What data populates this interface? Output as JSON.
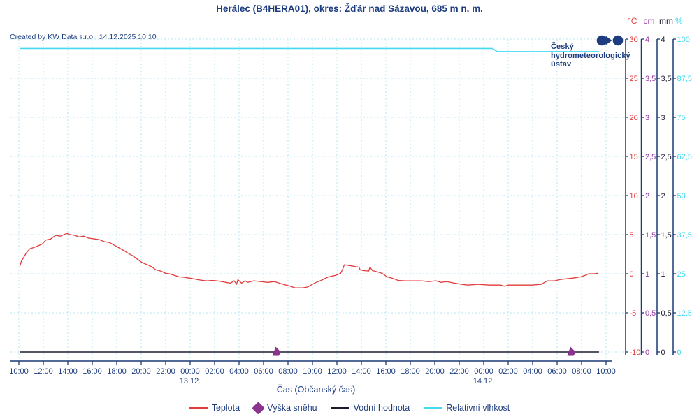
{
  "header": {
    "title": "Herálec (B4HERA01), okres: Žďár nad Sázavou, 685 m n. m.",
    "created_by": "Created by KW Data s.r.o., 14.12.2025 10:10"
  },
  "logo": {
    "line1": "Český",
    "line2": "hydrometeorologický",
    "line3": "ústav"
  },
  "colors": {
    "navy_text": "#1e3d80",
    "axis_line": "#1c3a75",
    "grid": "#b5e7f1",
    "temperature": "#e23b3b",
    "snow": "#8f3391",
    "water": "#1c1c30",
    "humidity": "#45d9f2"
  },
  "axes": {
    "right_columns": [
      {
        "unit": "°C",
        "color": "#e23b3b",
        "tick_labels": [
          "30",
          "25",
          "20",
          "15",
          "10",
          "5",
          "0",
          "-5",
          "-10"
        ]
      },
      {
        "unit": "cm",
        "color": "#9a3aa8",
        "tick_labels": [
          "4",
          "3,5",
          "3",
          "2,5",
          "2",
          "1,5",
          "1",
          "0,5",
          "0"
        ]
      },
      {
        "unit": "mm",
        "color": "#1c1c30",
        "tick_labels": [
          "4",
          "3,5",
          "3",
          "2,5",
          "2",
          "1,5",
          "1",
          "0,5",
          "0"
        ]
      },
      {
        "unit": "%",
        "color": "#3fd9f0",
        "tick_labels": [
          "100",
          "87,5",
          "75",
          "62,5",
          "50",
          "37,5",
          "25",
          "12,5",
          "0"
        ]
      }
    ]
  },
  "x_axis": {
    "title": "Čas (Občanský čas)",
    "tick_labels": [
      "10:00",
      "12:00",
      "14:00",
      "16:00",
      "18:00",
      "20:00",
      "22:00",
      "00:00",
      "02:00",
      "04:00",
      "06:00",
      "08:00",
      "10:00",
      "12:00",
      "14:00",
      "16:00",
      "18:00",
      "20:00",
      "22:00",
      "00:00",
      "02:00",
      "04:00",
      "06:00",
      "08:00",
      "10:00"
    ],
    "date_labels": [
      {
        "text": "13.12.",
        "hour": 14
      },
      {
        "text": "14.12.",
        "hour": 38
      }
    ]
  },
  "legend": {
    "items": [
      {
        "label": "Teplota",
        "color": "#e23b3b",
        "marker": "line"
      },
      {
        "label": "Výška sněhu",
        "color": "#8f3391",
        "marker": "diamond"
      },
      {
        "label": "Vodní hodnota",
        "color": "#1c1c30",
        "marker": "line"
      },
      {
        "label": "Relativní vlhkost",
        "color": "#45d9f2",
        "marker": "line"
      }
    ]
  },
  "chart_data": {
    "type": "line",
    "title": "Herálec (B4HERA01), okres: Žďár nad Sázavou, 685 m n. m.",
    "xlabel": "Čas (Občanský čas)",
    "x_unit": "hours since 12.12. 10:00 (labels every 2 h, 48 h span)",
    "x_range_hours": [
      0,
      48
    ],
    "grid": true,
    "legend_position": "bottom",
    "series": [
      {
        "name": "Teplota",
        "unit": "°C",
        "color": "#e23b3b",
        "axis_range": [
          -10,
          30
        ],
        "style": "line",
        "points": [
          [
            0.1,
            1.05
          ],
          [
            0.2,
            1.6
          ],
          [
            0.4,
            2.1
          ],
          [
            0.6,
            2.65
          ],
          [
            0.9,
            3.2
          ],
          [
            1.4,
            3.45
          ],
          [
            1.9,
            3.8
          ],
          [
            2.2,
            4.3
          ],
          [
            2.6,
            4.45
          ],
          [
            3.0,
            4.9
          ],
          [
            3.4,
            4.8
          ],
          [
            3.9,
            5.15
          ],
          [
            4.2,
            5.0
          ],
          [
            4.6,
            4.9
          ],
          [
            4.9,
            4.7
          ],
          [
            5.3,
            4.8
          ],
          [
            5.7,
            4.55
          ],
          [
            6.2,
            4.45
          ],
          [
            6.6,
            4.35
          ],
          [
            7.0,
            4.1
          ],
          [
            7.4,
            4.0
          ],
          [
            7.8,
            3.65
          ],
          [
            8.2,
            3.3
          ],
          [
            8.6,
            2.95
          ],
          [
            8.9,
            2.65
          ],
          [
            9.3,
            2.3
          ],
          [
            9.7,
            1.85
          ],
          [
            10.1,
            1.4
          ],
          [
            10.5,
            1.15
          ],
          [
            10.9,
            0.85
          ],
          [
            11.2,
            0.5
          ],
          [
            11.6,
            0.35
          ],
          [
            12.0,
            0.05
          ],
          [
            12.3,
            0.0
          ],
          [
            12.7,
            -0.2
          ],
          [
            13.1,
            -0.4
          ],
          [
            13.5,
            -0.45
          ],
          [
            13.9,
            -0.55
          ],
          [
            14.3,
            -0.65
          ],
          [
            14.6,
            -0.75
          ],
          [
            15.0,
            -0.85
          ],
          [
            15.4,
            -0.9
          ],
          [
            15.8,
            -0.85
          ],
          [
            16.2,
            -0.9
          ],
          [
            16.6,
            -1.0
          ],
          [
            16.9,
            -1.1
          ],
          [
            17.3,
            -1.2
          ],
          [
            17.6,
            -0.9
          ],
          [
            17.8,
            -1.35
          ],
          [
            17.9,
            -0.75
          ],
          [
            18.2,
            -1.2
          ],
          [
            18.5,
            -0.9
          ],
          [
            18.7,
            -1.1
          ],
          [
            19.2,
            -0.9
          ],
          [
            19.8,
            -1.0
          ],
          [
            20.3,
            -1.1
          ],
          [
            20.9,
            -1.0
          ],
          [
            21.5,
            -1.3
          ],
          [
            22.1,
            -1.55
          ],
          [
            22.6,
            -1.8
          ],
          [
            23.2,
            -1.8
          ],
          [
            23.6,
            -1.7
          ],
          [
            24.0,
            -1.35
          ],
          [
            24.3,
            -1.1
          ],
          [
            24.7,
            -0.85
          ],
          [
            25.3,
            -0.4
          ],
          [
            25.9,
            -0.2
          ],
          [
            26.3,
            0.05
          ],
          [
            26.5,
            0.7
          ],
          [
            26.6,
            1.15
          ],
          [
            27.0,
            1.05
          ],
          [
            27.4,
            0.95
          ],
          [
            27.8,
            0.85
          ],
          [
            27.9,
            0.5
          ],
          [
            28.2,
            0.4
          ],
          [
            28.6,
            0.35
          ],
          [
            28.7,
            0.85
          ],
          [
            28.9,
            0.4
          ],
          [
            29.3,
            0.25
          ],
          [
            29.7,
            0.05
          ],
          [
            30.1,
            -0.4
          ],
          [
            30.5,
            -0.55
          ],
          [
            31.0,
            -0.85
          ],
          [
            31.6,
            -0.9
          ],
          [
            32.2,
            -0.9
          ],
          [
            32.9,
            -0.9
          ],
          [
            33.5,
            -1.0
          ],
          [
            34.1,
            -0.9
          ],
          [
            34.5,
            -1.1
          ],
          [
            35.0,
            -1.0
          ],
          [
            35.6,
            -1.2
          ],
          [
            36.2,
            -1.35
          ],
          [
            36.7,
            -1.45
          ],
          [
            37.5,
            -1.35
          ],
          [
            38.5,
            -1.45
          ],
          [
            39.4,
            -1.45
          ],
          [
            39.7,
            -1.6
          ],
          [
            40.0,
            -1.45
          ],
          [
            40.9,
            -1.45
          ],
          [
            41.9,
            -1.45
          ],
          [
            42.7,
            -1.35
          ],
          [
            43.2,
            -0.9
          ],
          [
            43.8,
            -0.9
          ],
          [
            44.2,
            -0.75
          ],
          [
            44.7,
            -0.65
          ],
          [
            45.3,
            -0.55
          ],
          [
            45.9,
            -0.4
          ],
          [
            46.3,
            -0.2
          ],
          [
            46.6,
            0.0
          ],
          [
            47.0,
            0.0
          ],
          [
            47.3,
            0.05
          ]
        ]
      },
      {
        "name": "Výška sněhu",
        "unit": "cm",
        "color": "#8f3391",
        "axis_range": [
          0,
          4
        ],
        "style": "diamond",
        "points": [
          [
            21.0,
            0
          ],
          [
            45.1,
            0
          ]
        ]
      },
      {
        "name": "Vodní hodnota",
        "unit": "mm",
        "color": "#1c1c30",
        "axis_range": [
          0,
          4
        ],
        "style": "line",
        "points": [
          [
            0.1,
            0
          ],
          [
            47.4,
            0
          ]
        ]
      },
      {
        "name": "Relativní vlhkost",
        "unit": "%",
        "color": "#45d9f2",
        "axis_range": [
          0,
          100
        ],
        "style": "line",
        "points": [
          [
            0.1,
            97
          ],
          [
            38.7,
            97
          ],
          [
            39.1,
            96
          ],
          [
            47.4,
            96
          ]
        ]
      }
    ]
  }
}
